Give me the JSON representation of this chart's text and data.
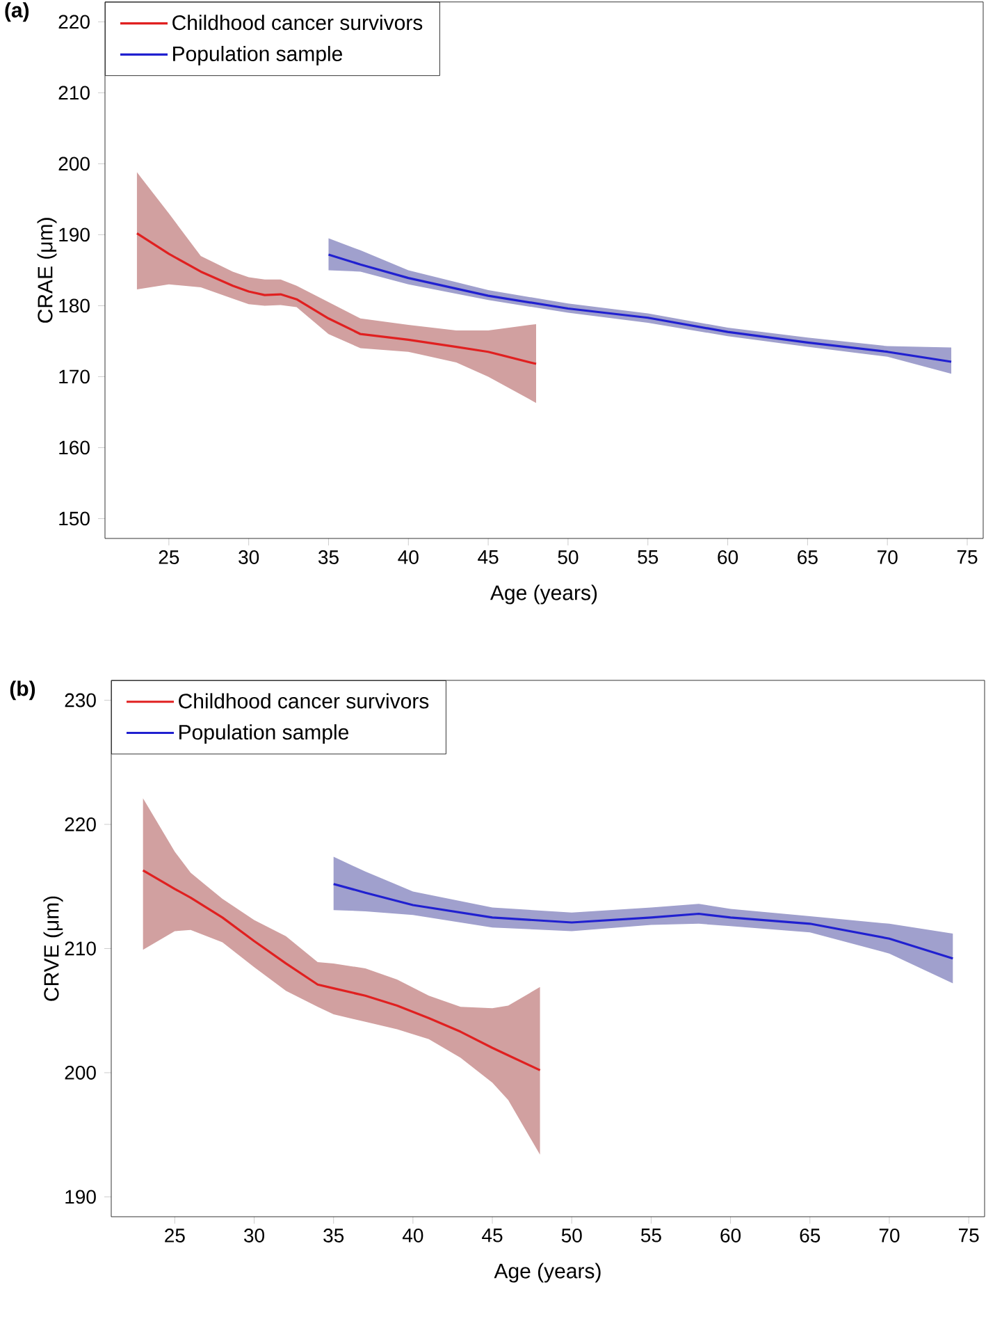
{
  "chart_data": [
    {
      "type": "line",
      "title": "(a)",
      "xlabel": "Age (years)",
      "ylabel": "CRAE (μm)",
      "xlim": [
        21,
        76
      ],
      "ylim": [
        147.2,
        222.8
      ],
      "xticks": [
        25,
        30,
        35,
        40,
        45,
        50,
        55,
        60,
        65,
        70,
        75
      ],
      "yticks": [
        150,
        160,
        170,
        180,
        190,
        200,
        210,
        220
      ],
      "legend": "top left",
      "grid": false,
      "line_style": "solid",
      "series": [
        {
          "name": "Childhood cancer survivors",
          "color": "#e02020",
          "x": [
            23,
            25,
            27,
            29,
            30,
            31,
            32,
            33,
            35,
            37,
            40,
            43,
            45,
            48
          ],
          "values": [
            190.2,
            187.3,
            184.8,
            182.8,
            182,
            181.5,
            181.6,
            180.9,
            178.2,
            176,
            175.2,
            174.2,
            173.5,
            171.8
          ],
          "lower": [
            182.3,
            183,
            182.6,
            181,
            180.2,
            180,
            180.1,
            179.8,
            176,
            174,
            173.5,
            172,
            170,
            166.3
          ],
          "upper": [
            198.8,
            193,
            187,
            184.8,
            184,
            183.7,
            183.7,
            182.8,
            180.5,
            178.2,
            177.3,
            176.5,
            176.5,
            177.4
          ]
        },
        {
          "name": "Population sample",
          "color": "#2020d0",
          "x": [
            35,
            37,
            40,
            45,
            50,
            55,
            60,
            65,
            70,
            74
          ],
          "values": [
            187.2,
            185.8,
            183.9,
            181.4,
            179.6,
            178.3,
            176.3,
            174.8,
            173.5,
            172.1
          ],
          "lower": [
            185,
            184.8,
            183,
            180.8,
            179,
            177.6,
            175.7,
            174.2,
            172.8,
            170.4
          ],
          "upper": [
            189.5,
            187.8,
            185,
            182.2,
            180.3,
            178.9,
            176.9,
            175.5,
            174.3,
            174.1
          ]
        }
      ]
    },
    {
      "type": "line",
      "title": "(b)",
      "xlabel": "Age (years)",
      "ylabel": "CRVE (μm)",
      "xlim": [
        21,
        76
      ],
      "ylim": [
        188.4,
        231.6
      ],
      "xticks": [
        25,
        30,
        35,
        40,
        45,
        50,
        55,
        60,
        65,
        70,
        75
      ],
      "yticks": [
        190,
        200,
        210,
        220,
        230
      ],
      "legend": "top left",
      "grid": false,
      "line_style": "solid",
      "series": [
        {
          "name": "Childhood cancer survivors",
          "color": "#e02020",
          "x": [
            23,
            25,
            26,
            28,
            30,
            32,
            34,
            35,
            37,
            39,
            41,
            43,
            45,
            46,
            48
          ],
          "values": [
            216.3,
            214.8,
            214.1,
            212.5,
            210.6,
            208.8,
            207.1,
            206.8,
            206.2,
            205.4,
            204.4,
            203.3,
            202,
            201.4,
            200.2
          ],
          "lower": [
            209.9,
            211.4,
            211.5,
            210.5,
            208.5,
            206.6,
            205.3,
            204.7,
            204.1,
            203.5,
            202.7,
            201.2,
            199.2,
            197.8,
            193.4
          ],
          "upper": [
            222.1,
            217.8,
            216.1,
            214,
            212.3,
            211,
            208.9,
            208.8,
            208.4,
            207.5,
            206.2,
            205.3,
            205.2,
            205.4,
            206.9
          ]
        },
        {
          "name": "Population sample",
          "color": "#2020d0",
          "x": [
            35,
            37,
            40,
            45,
            50,
            55,
            58,
            60,
            65,
            70,
            74
          ],
          "values": [
            215.2,
            214.5,
            213.5,
            212.5,
            212.1,
            212.5,
            212.8,
            212.5,
            212,
            210.8,
            209.2
          ],
          "lower": [
            213.1,
            213,
            212.7,
            211.7,
            211.4,
            211.9,
            212,
            211.8,
            211.3,
            209.6,
            207.2
          ],
          "upper": [
            217.4,
            216.2,
            214.6,
            213.3,
            212.9,
            213.3,
            213.6,
            213.2,
            212.6,
            212,
            211.2
          ]
        }
      ]
    }
  ]
}
